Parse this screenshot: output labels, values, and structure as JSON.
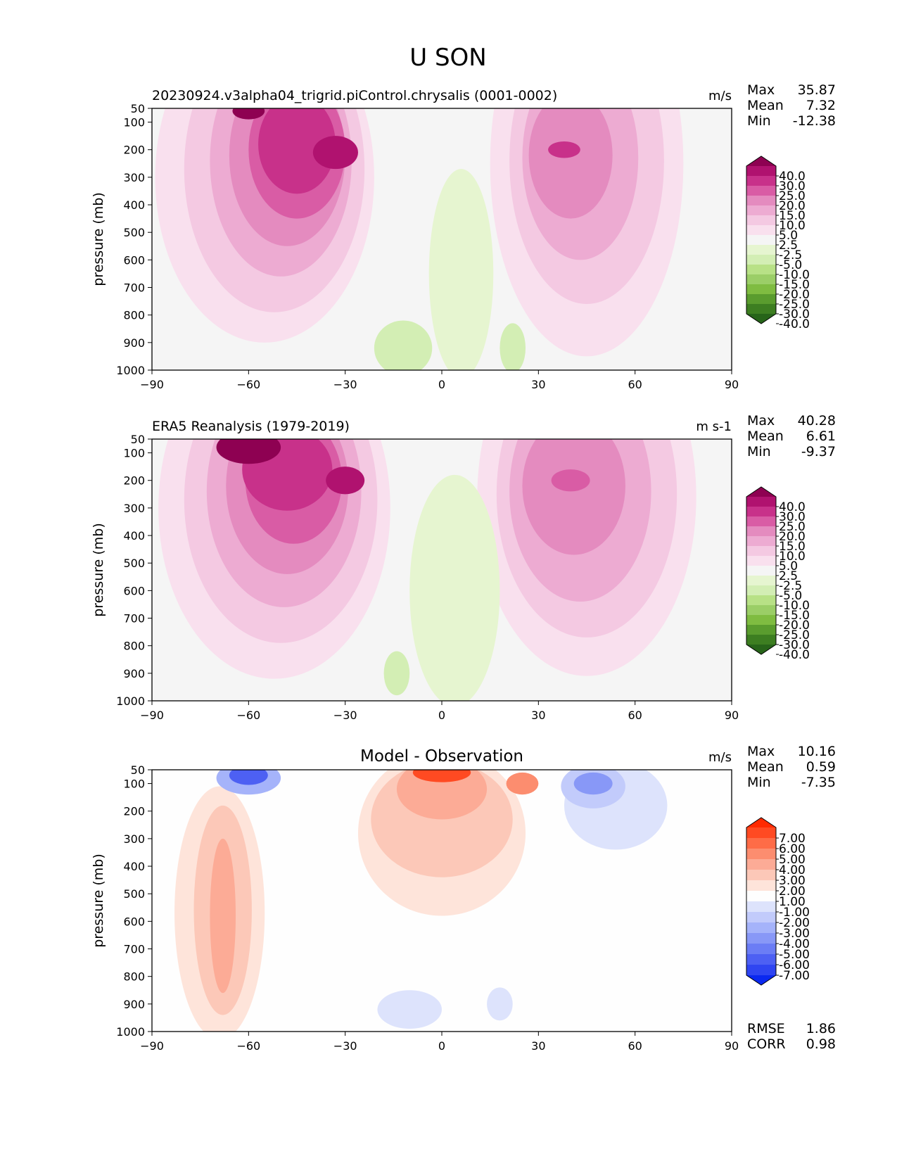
{
  "page_title": "U SON",
  "chart_data": [
    {
      "type": "heatmap",
      "title": "20230924.v3alpha04_trigrid.piControl.chrysalis (0001-0002)",
      "units": "m/s",
      "xlabel": "",
      "ylabel": "pressure (mb)",
      "xlim": [
        -90,
        90
      ],
      "ylim": [
        1000,
        50
      ],
      "xticks": [
        "−90",
        "−60",
        "−30",
        "0",
        "30",
        "60",
        "90"
      ],
      "yticks": [
        "50",
        "100",
        "200",
        "300",
        "400",
        "500",
        "600",
        "700",
        "800",
        "900",
        "1000"
      ],
      "stats": [
        {
          "label": "Max",
          "value": "35.87"
        },
        {
          "label": "Mean",
          "value": "7.32"
        },
        {
          "label": "Min",
          "value": "-12.38"
        }
      ],
      "colorbar": {
        "labels": [
          "40.0",
          "30.0",
          "25.0",
          "20.0",
          "15.0",
          "10.0",
          "5.0",
          "2.5",
          "-2.5",
          "-5.0",
          "-10.0",
          "-15.0",
          "-20.0",
          "-25.0",
          "-30.0",
          "-40.0"
        ],
        "colors": [
          "#8e0152",
          "#b0126f",
          "#c8318a",
          "#d95ca5",
          "#e48bbf",
          "#edabd2",
          "#f4c9e2",
          "#f9e0ee",
          "#f5f5f5",
          "#e6f5d0",
          "#d3eeb4",
          "#b8e186",
          "#9bce67",
          "#7fbc41",
          "#5a9c2e",
          "#3d7e21",
          "#276419"
        ]
      }
    },
    {
      "type": "heatmap",
      "title": "ERA5 Reanalysis (1979-2019)",
      "units": "m s-1",
      "xlabel": "",
      "ylabel": "pressure (mb)",
      "xlim": [
        -90,
        90
      ],
      "ylim": [
        1000,
        50
      ],
      "xticks": [
        "−90",
        "−60",
        "−30",
        "0",
        "30",
        "60",
        "90"
      ],
      "yticks": [
        "50",
        "100",
        "200",
        "300",
        "400",
        "500",
        "600",
        "700",
        "800",
        "900",
        "1000"
      ],
      "stats": [
        {
          "label": "Max",
          "value": "40.28"
        },
        {
          "label": "Mean",
          "value": "6.61"
        },
        {
          "label": "Min",
          "value": "-9.37"
        }
      ],
      "colorbar": {
        "labels": [
          "40.0",
          "30.0",
          "25.0",
          "20.0",
          "15.0",
          "10.0",
          "5.0",
          "2.5",
          "-2.5",
          "-5.0",
          "-10.0",
          "-15.0",
          "-20.0",
          "-25.0",
          "-30.0",
          "-40.0"
        ],
        "colors": [
          "#8e0152",
          "#b0126f",
          "#c8318a",
          "#d95ca5",
          "#e48bbf",
          "#edabd2",
          "#f4c9e2",
          "#f9e0ee",
          "#f5f5f5",
          "#e6f5d0",
          "#d3eeb4",
          "#b8e186",
          "#9bce67",
          "#7fbc41",
          "#5a9c2e",
          "#3d7e21",
          "#276419"
        ]
      }
    },
    {
      "type": "heatmap",
      "title": "Model - Observation",
      "units": "m/s",
      "xlabel": "",
      "ylabel": "pressure (mb)",
      "xlim": [
        -90,
        90
      ],
      "ylim": [
        1000,
        50
      ],
      "xticks": [
        "−90",
        "−60",
        "−30",
        "0",
        "30",
        "60",
        "90"
      ],
      "yticks": [
        "50",
        "100",
        "200",
        "300",
        "400",
        "500",
        "600",
        "700",
        "800",
        "900",
        "1000"
      ],
      "stats": [
        {
          "label": "Max",
          "value": "10.16"
        },
        {
          "label": "Mean",
          "value": "0.59"
        },
        {
          "label": "Min",
          "value": "-7.35"
        }
      ],
      "extra_stats": [
        {
          "label": "RMSE",
          "value": "1.86"
        },
        {
          "label": "CORR",
          "value": "0.98"
        }
      ],
      "colorbar": {
        "labels": [
          "7.00",
          "6.00",
          "5.00",
          "4.00",
          "3.00",
          "2.00",
          "1.00",
          "-1.00",
          "-2.00",
          "-3.00",
          "-4.00",
          "-5.00",
          "-6.00",
          "-7.00"
        ],
        "colors": [
          "#ff2a00",
          "#ff4a22",
          "#fe6c47",
          "#fc8d6f",
          "#fcab96",
          "#fcc8b8",
          "#fee4da",
          "#fefefe",
          "#dde3fc",
          "#c2cbfb",
          "#a5b3fa",
          "#8898f7",
          "#6b7df5",
          "#4d60f3",
          "#2f45f1",
          "#0a28f0"
        ]
      }
    }
  ]
}
